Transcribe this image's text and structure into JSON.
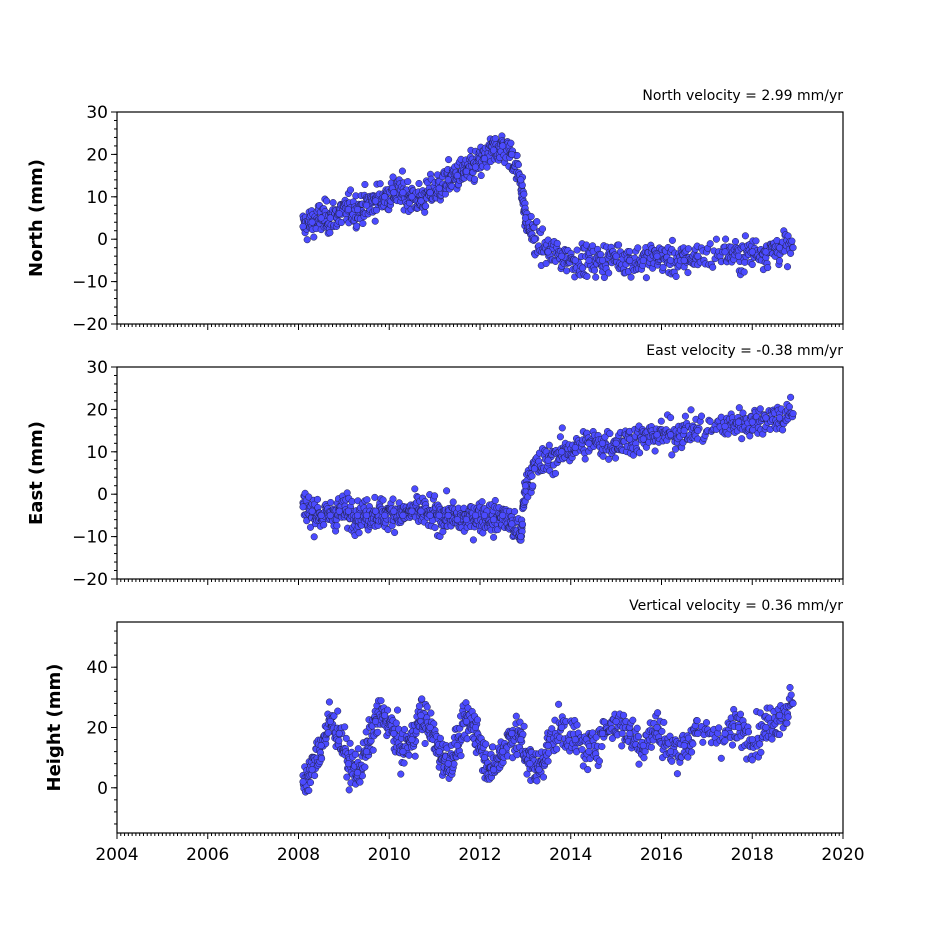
{
  "chart_data": [
    {
      "type": "scatter",
      "title": "North velocity = 2.99 mm/yr",
      "ylabel": "North (mm)",
      "ylim": [
        -20,
        30
      ],
      "yticks": [
        -20,
        -10,
        0,
        10,
        20,
        30
      ],
      "ytick_labels": [
        "−20",
        "−10",
        "0",
        "10",
        "20",
        "30"
      ],
      "xlim": [
        2004,
        2020
      ],
      "marker_color": "#4b4bff",
      "series": [
        {
          "x": [
            2008.1,
            2008.3,
            2008.5,
            2008.7,
            2008.9,
            2009.1,
            2009.3,
            2009.5,
            2009.7,
            2009.9,
            2010.1,
            2010.3,
            2010.5,
            2010.7,
            2010.9,
            2011.1,
            2011.3,
            2011.5,
            2011.7,
            2011.9,
            2012.1,
            2012.3,
            2012.5,
            2012.7,
            2012.9,
            2013.0,
            2013.2,
            2013.5,
            2013.8,
            2014.1,
            2014.4,
            2014.7,
            2015.0,
            2015.3,
            2015.6,
            2015.9,
            2016.2,
            2016.5,
            2016.8,
            2017.4,
            2017.7,
            2018.0,
            2018.3,
            2018.6,
            2018.9
          ],
          "y": [
            3,
            4,
            5,
            5,
            6,
            7,
            7,
            8,
            9,
            10,
            11,
            11,
            10,
            9,
            11,
            12,
            14,
            15,
            16,
            17,
            19,
            21,
            22,
            20,
            14,
            5,
            0,
            -3,
            -4,
            -5,
            -5,
            -5,
            -4,
            -5,
            -5,
            -4,
            -5,
            -5,
            -4,
            -3,
            -4,
            -3,
            -3,
            -2,
            -2
          ]
        }
      ]
    },
    {
      "type": "scatter",
      "title": "East velocity = -0.38 mm/yr",
      "ylabel": "East (mm)",
      "ylim": [
        -20,
        30
      ],
      "yticks": [
        -20,
        -10,
        0,
        10,
        20,
        30
      ],
      "ytick_labels": [
        "−20",
        "−10",
        "0",
        "10",
        "20",
        "30"
      ],
      "xlim": [
        2004,
        2020
      ],
      "marker_color": "#4b4bff",
      "series": [
        {
          "x": [
            2008.1,
            2008.3,
            2008.5,
            2008.7,
            2008.9,
            2009.1,
            2009.3,
            2009.5,
            2009.7,
            2009.9,
            2010.1,
            2010.3,
            2010.5,
            2010.7,
            2010.9,
            2011.1,
            2011.3,
            2011.5,
            2011.7,
            2011.9,
            2012.1,
            2012.3,
            2012.5,
            2012.7,
            2012.9,
            2013.0,
            2013.2,
            2013.5,
            2013.8,
            2014.1,
            2014.4,
            2014.7,
            2015.0,
            2015.3,
            2015.6,
            2015.9,
            2016.2,
            2016.5,
            2016.8,
            2017.4,
            2017.7,
            2018.0,
            2018.3,
            2018.6,
            2018.9
          ],
          "y": [
            -3,
            -4,
            -5,
            -5,
            -4,
            -4,
            -5,
            -5,
            -4,
            -5,
            -4,
            -5,
            -4,
            -4,
            -5,
            -5,
            -5,
            -6,
            -6,
            -5,
            -5,
            -6,
            -5,
            -7,
            -10,
            2,
            6,
            8,
            10,
            11,
            12,
            12,
            12,
            13,
            13,
            14,
            14,
            15,
            15,
            16,
            17,
            17,
            18,
            18,
            19
          ]
        }
      ]
    },
    {
      "type": "scatter",
      "title": "Vertical velocity = 0.36 mm/yr",
      "ylabel": "Height (mm)",
      "ylim": [
        -15,
        55
      ],
      "yticks": [
        0,
        20,
        40
      ],
      "ytick_labels": [
        "0",
        "20",
        "40"
      ],
      "xlim": [
        2004,
        2020
      ],
      "xticks": [
        2004,
        2006,
        2008,
        2010,
        2012,
        2014,
        2016,
        2018,
        2020
      ],
      "xtick_labels": [
        "2004",
        "2006",
        "2008",
        "2010",
        "2012",
        "2014",
        "2016",
        "2018",
        "2020"
      ],
      "marker_color": "#4b4bff",
      "series": [
        {
          "x": [
            2008.1,
            2008.3,
            2008.5,
            2008.7,
            2008.9,
            2009.1,
            2009.3,
            2009.5,
            2009.7,
            2009.9,
            2010.1,
            2010.3,
            2010.5,
            2010.7,
            2010.9,
            2011.1,
            2011.3,
            2011.5,
            2011.7,
            2011.9,
            2012.1,
            2012.3,
            2012.5,
            2012.7,
            2012.9,
            2013.1,
            2013.3,
            2013.5,
            2013.8,
            2014.1,
            2014.4,
            2014.7,
            2015.0,
            2015.3,
            2015.6,
            2015.9,
            2016.2,
            2016.5,
            2016.8,
            2017.4,
            2017.7,
            2018.0,
            2018.3,
            2018.6,
            2018.9
          ],
          "y": [
            2,
            6,
            14,
            22,
            18,
            8,
            5,
            12,
            22,
            24,
            18,
            12,
            16,
            24,
            20,
            12,
            8,
            14,
            22,
            20,
            10,
            6,
            12,
            18,
            16,
            8,
            6,
            14,
            20,
            16,
            12,
            18,
            22,
            18,
            14,
            20,
            12,
            14,
            18,
            18,
            20,
            16,
            20,
            24,
            28
          ]
        }
      ]
    }
  ]
}
